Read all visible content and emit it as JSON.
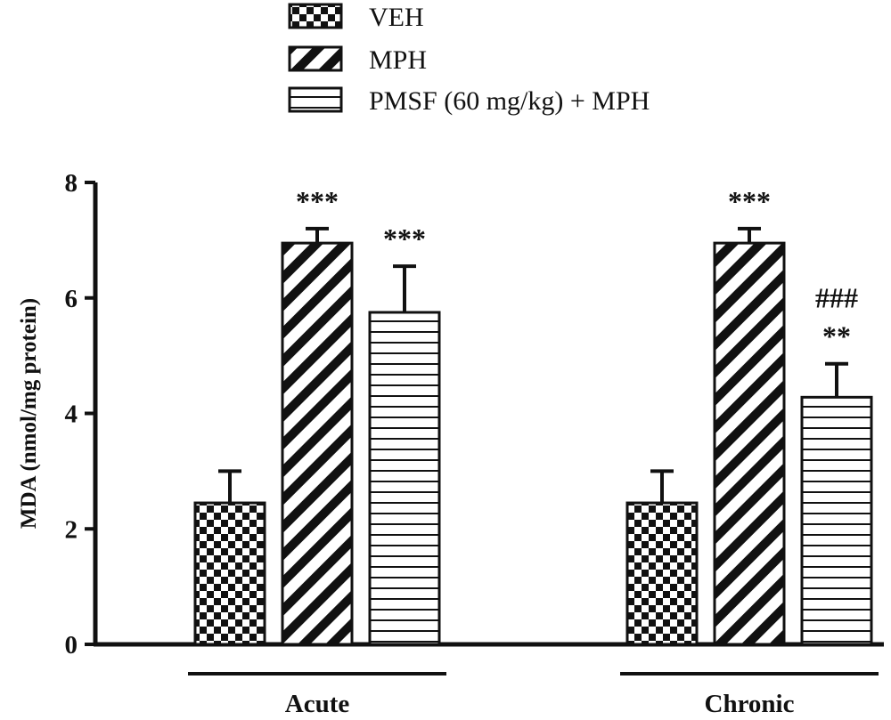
{
  "chart_data": {
    "type": "bar",
    "ylabel": "MDA (nmol/mg protein)",
    "ylim": [
      0,
      8
    ],
    "yticks": [
      "0",
      "2",
      "4",
      "6",
      "8"
    ],
    "categories": [
      "Acute",
      "Chronic"
    ],
    "series": [
      {
        "name": "VEH",
        "pattern": "checker",
        "values": [
          2.45,
          2.45
        ],
        "errors": [
          0.55,
          0.55
        ]
      },
      {
        "name": "MPH",
        "pattern": "diagonal",
        "values": [
          6.95,
          6.95
        ],
        "errors": [
          0.25,
          0.25
        ]
      },
      {
        "name": "PMSF (60 mg/kg) + MPH",
        "pattern": "horizontal",
        "values": [
          5.75,
          4.28
        ],
        "errors": [
          0.8,
          0.58
        ]
      }
    ],
    "annotations": [
      {
        "category": "Acute",
        "series": "MPH",
        "text": "***"
      },
      {
        "category": "Acute",
        "series": "PMSF (60 mg/kg) + MPH",
        "text": "***"
      },
      {
        "category": "Chronic",
        "series": "MPH",
        "text": "***"
      },
      {
        "category": "Chronic",
        "series": "PMSF (60 mg/kg) + MPH",
        "text": "**"
      },
      {
        "category": "Chronic",
        "series": "PMSF (60 mg/kg) + MPH",
        "text": "###"
      }
    ],
    "grid": false,
    "legend": "top-center"
  }
}
